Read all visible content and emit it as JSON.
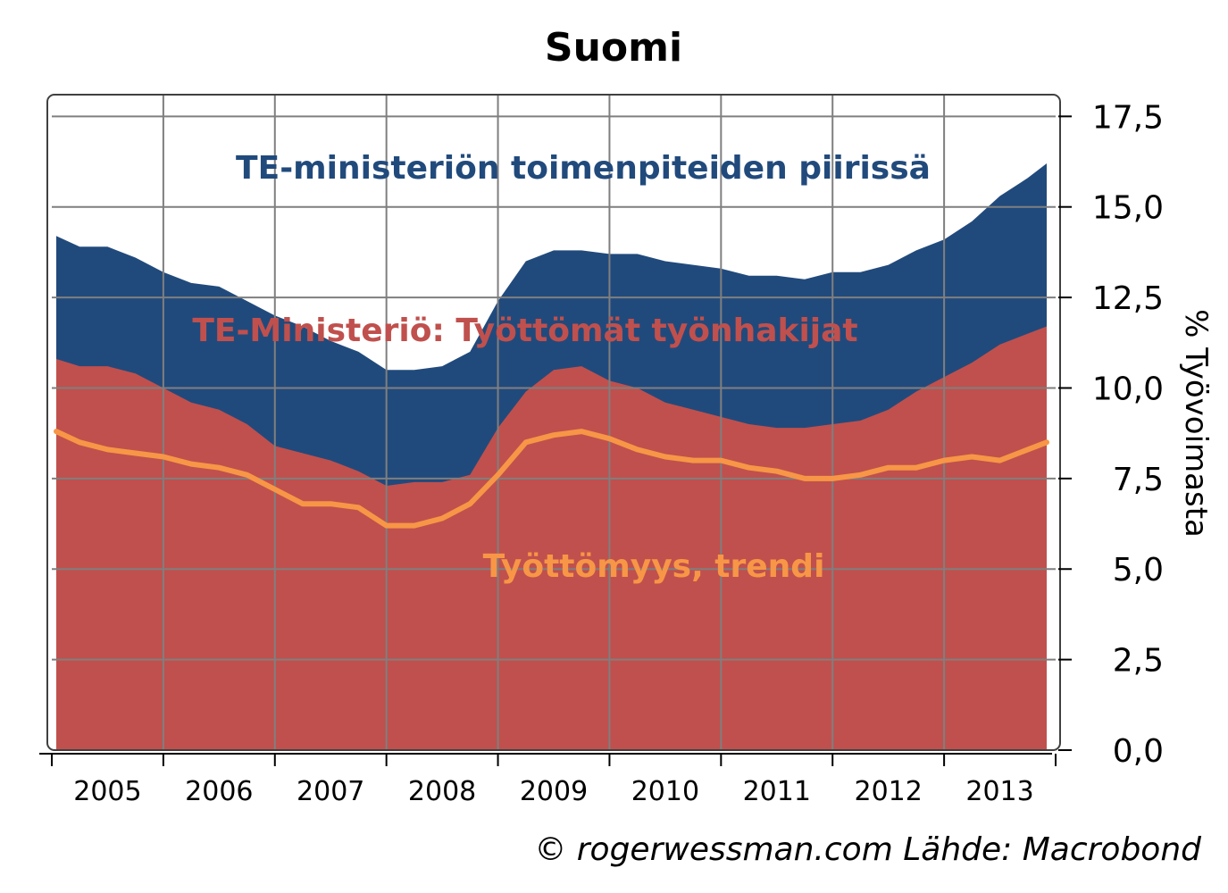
{
  "chart_data": {
    "type": "area",
    "title": "Suomi",
    "ylabel": "% Työvoimasta",
    "xlabel": "",
    "ylim": [
      0,
      18.1
    ],
    "yticks": [
      "0,0",
      "2,5",
      "5,0",
      "7,5",
      "10,0",
      "12,5",
      "15,0",
      "17,5"
    ],
    "ytick_values": [
      0,
      2.5,
      5,
      7.5,
      10,
      12.5,
      15,
      17.5
    ],
    "xlim": [
      2005.0,
      2014.0
    ],
    "xtick_labels": [
      "2005",
      "2006",
      "2007",
      "2008",
      "2009",
      "2010",
      "2011",
      "2012",
      "2013"
    ],
    "grid": true,
    "source": "© rogerwessman.com Lähde: Macrobond",
    "series": [
      {
        "name": "TE-ministeriön toimenpiteiden piirissä",
        "color": "#214a7c",
        "style": "area",
        "x": [
          2005.04,
          2005.25,
          2005.5,
          2005.75,
          2006.0,
          2006.25,
          2006.5,
          2006.75,
          2007.0,
          2007.25,
          2007.5,
          2007.75,
          2008.0,
          2008.25,
          2008.5,
          2008.75,
          2009.0,
          2009.25,
          2009.5,
          2009.75,
          2010.0,
          2010.25,
          2010.5,
          2010.75,
          2011.0,
          2011.25,
          2011.5,
          2011.75,
          2012.0,
          2012.25,
          2012.5,
          2012.75,
          2013.0,
          2013.25,
          2013.5,
          2013.75,
          2014.0
        ],
        "values": [
          14.2,
          13.9,
          13.9,
          13.6,
          13.2,
          12.9,
          12.8,
          12.4,
          12.0,
          11.7,
          11.3,
          11.0,
          10.5,
          10.5,
          10.6,
          11.0,
          12.4,
          13.5,
          13.8,
          13.8,
          13.7,
          13.7,
          13.5,
          13.4,
          13.3,
          13.1,
          13.1,
          13.0,
          13.2,
          13.2,
          13.4,
          13.8,
          14.1,
          14.6,
          15.3,
          15.8,
          16.2
        ]
      },
      {
        "name": "TE-Ministeriö: Työttömät työnhakijat",
        "color": "#c0504d",
        "style": "area",
        "x": [
          2005.04,
          2005.25,
          2005.5,
          2005.75,
          2006.0,
          2006.25,
          2006.5,
          2006.75,
          2007.0,
          2007.25,
          2007.5,
          2007.75,
          2008.0,
          2008.25,
          2008.5,
          2008.75,
          2009.0,
          2009.25,
          2009.5,
          2009.75,
          2010.0,
          2010.25,
          2010.5,
          2010.75,
          2011.0,
          2011.25,
          2011.5,
          2011.75,
          2012.0,
          2012.25,
          2012.5,
          2012.75,
          2013.0,
          2013.25,
          2013.5,
          2013.75,
          2014.0
        ],
        "values": [
          10.8,
          10.6,
          10.6,
          10.4,
          10.0,
          9.6,
          9.4,
          9.0,
          8.4,
          8.2,
          8.0,
          7.7,
          7.3,
          7.4,
          7.4,
          7.6,
          8.9,
          9.9,
          10.5,
          10.6,
          10.2,
          10.0,
          9.6,
          9.4,
          9.2,
          9.0,
          8.9,
          8.9,
          9.0,
          9.1,
          9.4,
          9.9,
          10.3,
          10.7,
          11.2,
          11.5,
          11.7
        ]
      },
      {
        "name": "Työttömyys, trendi",
        "color": "#f79646",
        "style": "line",
        "x": [
          2005.04,
          2005.25,
          2005.5,
          2005.75,
          2006.0,
          2006.25,
          2006.5,
          2006.75,
          2007.0,
          2007.25,
          2007.5,
          2007.75,
          2008.0,
          2008.25,
          2008.5,
          2008.75,
          2009.0,
          2009.25,
          2009.5,
          2009.75,
          2010.0,
          2010.25,
          2010.5,
          2010.75,
          2011.0,
          2011.25,
          2011.5,
          2011.75,
          2012.0,
          2012.25,
          2012.5,
          2012.75,
          2013.0,
          2013.25,
          2013.5,
          2013.75,
          2014.0
        ],
        "values": [
          8.8,
          8.5,
          8.3,
          8.2,
          8.1,
          7.9,
          7.8,
          7.6,
          7.2,
          6.8,
          6.8,
          6.7,
          6.2,
          6.2,
          6.4,
          6.8,
          7.6,
          8.5,
          8.7,
          8.8,
          8.6,
          8.3,
          8.1,
          8.0,
          8.0,
          7.8,
          7.7,
          7.5,
          7.5,
          7.6,
          7.8,
          7.8,
          8.0,
          8.1,
          8.0,
          8.3,
          8.5
        ]
      }
    ]
  }
}
